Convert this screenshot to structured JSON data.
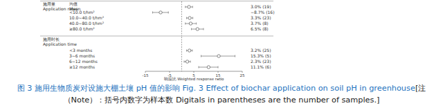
{
  "chart_data": [
    {
      "type": "forest",
      "title": "施用量\nApplication rates",
      "categories": [
        "均值\nMean",
        "<10.0 t/hm²",
        "10.0~40.0 t/hm²",
        "40.0~80.0 t/hm²",
        "≥80.0 t/hm²"
      ],
      "values": [
        3.0,
        -8.7,
        3.3,
        3.7,
        6.5
      ],
      "value_labels": [
        "3.0% (19)",
        "−8.7% (16)",
        "3.3% (23)",
        "3.7% (8)",
        "6.5% (8)"
      ],
      "ci_low": [
        1.5,
        -12.0,
        2.0,
        1.5,
        4.0
      ],
      "ci_high": [
        4.5,
        -5.5,
        4.6,
        6.0,
        9.0
      ],
      "ref_line": 0,
      "xlim": [
        -15,
        25
      ],
      "tick_labels": false,
      "marker": "circle",
      "color": "#555555"
    },
    {
      "type": "forest",
      "title": "施用时长\nApplication time",
      "categories": [
        "<3 months",
        "3~6 months",
        "6~12 months",
        "≥12 months"
      ],
      "values": [
        3.2,
        15.3,
        2.3,
        11.1
      ],
      "value_labels": [
        "3.2% (25)",
        "15.3% (5)",
        "2.3% (23)",
        "11.1% (6)"
      ],
      "ci_low": [
        2.0,
        8.0,
        1.0,
        7.0
      ],
      "ci_high": [
        4.4,
        22.0,
        3.6,
        15.0
      ],
      "ref_line": 0,
      "xlim": [
        -15,
        25
      ],
      "xticks": [
        -15,
        -5,
        5,
        15,
        25
      ],
      "x_label": "响应比 Weighted response ratio",
      "marker": "circle",
      "color": "#555555"
    }
  ],
  "caption": {
    "title": "图 3 施用生物质炭对设施大棚土壤 pH 值的影响 Fig. 3 Effect of biochar application on soil pH in greenhouse",
    "note": "[注（Note）：括号内数字为样本数 Digitals in parentheses are the number of samples.]"
  }
}
